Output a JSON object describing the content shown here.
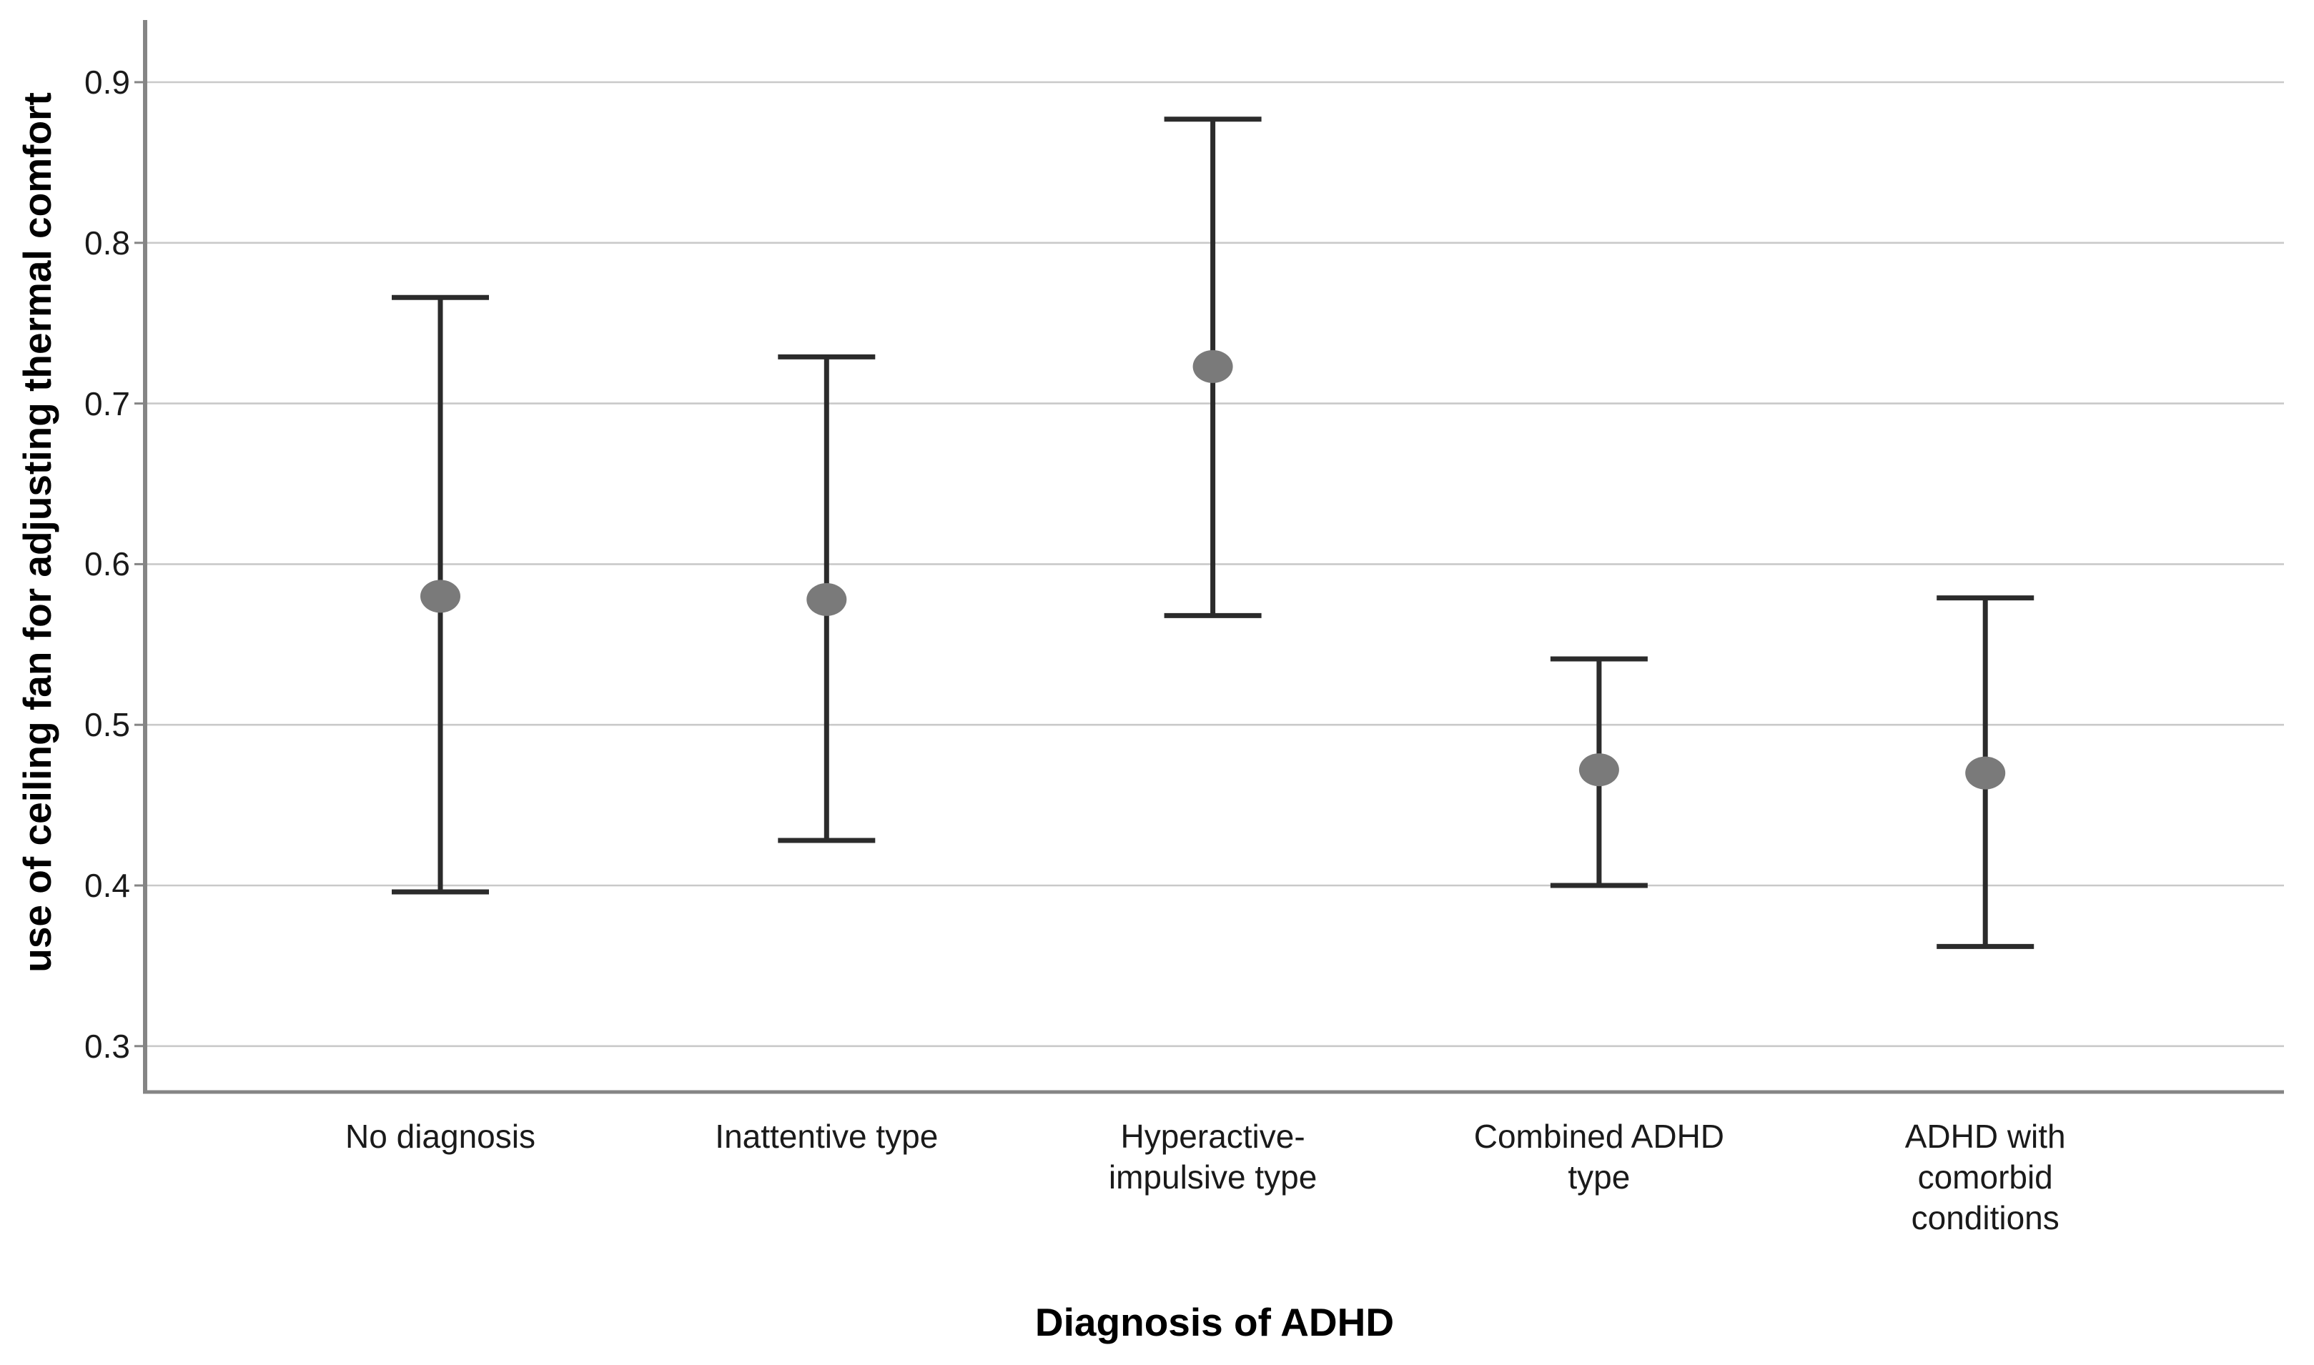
{
  "chart_data": {
    "type": "errorbar",
    "title": "",
    "xlabel": "Diagnosis of ADHD",
    "ylabel": "use of ceiling fan for adjusting thermal comfort",
    "categories": [
      "No diagnosis",
      "Inattentive type",
      "Hyperactive-impulsive type",
      "Combined ADHD type",
      "ADHD with comorbid conditions"
    ],
    "category_label_lines": [
      [
        "No diagnosis"
      ],
      [
        "Inattentive type"
      ],
      [
        "Hyperactive-",
        "impulsive type"
      ],
      [
        "Combined ADHD",
        "type"
      ],
      [
        "ADHD with",
        "comorbid",
        "conditions"
      ]
    ],
    "points": [
      {
        "category": "No diagnosis",
        "mean": 0.58,
        "ci_low": 0.396,
        "ci_high": 0.766
      },
      {
        "category": "Inattentive type",
        "mean": 0.578,
        "ci_low": 0.428,
        "ci_high": 0.729
      },
      {
        "category": "Hyperactive-impulsive type",
        "mean": 0.723,
        "ci_low": 0.568,
        "ci_high": 0.877
      },
      {
        "category": "Combined ADHD type",
        "mean": 0.472,
        "ci_low": 0.4,
        "ci_high": 0.541
      },
      {
        "category": "ADHD with comorbid conditions",
        "mean": 0.47,
        "ci_low": 0.362,
        "ci_high": 0.579
      }
    ],
    "yticks": [
      "0.9",
      "0.8",
      "0.7",
      "0.6",
      "0.5",
      "0.4",
      "0.3"
    ],
    "ytick_values": [
      0.9,
      0.8,
      0.7,
      0.6,
      0.5,
      0.4,
      0.3
    ],
    "ylim": [
      0.271,
      0.938
    ],
    "grid": true,
    "legend_position": "none",
    "colors": {
      "marker": "#7a7a7a",
      "error_bar": "#2b2b2b",
      "gridline": "#c9c9c9",
      "axis_line": "#858585",
      "text": "#1a1a1a",
      "background": "#ffffff"
    }
  }
}
